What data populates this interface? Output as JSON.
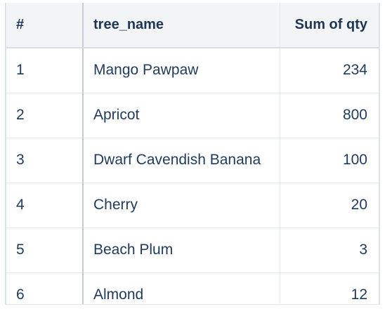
{
  "table": {
    "columns": [
      "#",
      "tree_name",
      "Sum of qty"
    ],
    "rows": [
      {
        "num": "1",
        "tree_name": "Mango Pawpaw",
        "qty": "234"
      },
      {
        "num": "2",
        "tree_name": "Apricot",
        "qty": "800"
      },
      {
        "num": "3",
        "tree_name": "Dwarf Cavendish Banana",
        "qty": "100"
      },
      {
        "num": "4",
        "tree_name": "Cherry",
        "qty": "20"
      },
      {
        "num": "5",
        "tree_name": "Beach Plum",
        "qty": "3"
      },
      {
        "num": "6",
        "tree_name": "Almond",
        "qty": "12"
      }
    ]
  },
  "colors": {
    "header_background": "#f3f4f6",
    "text": "#1f3a5a",
    "grid_line": "#e3e7ee",
    "frozen_column_divider": "#c4ccd8"
  }
}
